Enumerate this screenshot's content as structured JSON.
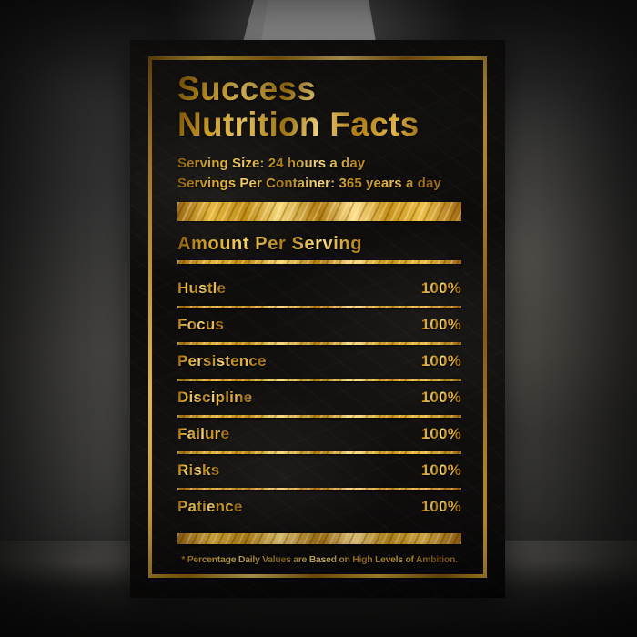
{
  "colors": {
    "gold": "#d9a62b",
    "gold_bright": "#f6d878",
    "gold_dark": "#8a5c0c",
    "poster_background": "#0e0d0b",
    "wall_gray": "#444342",
    "spotlight_white": "#f7f7f4",
    "floor_dark": "#232221"
  },
  "poster": {
    "title_line1": "Success",
    "title_line2": "Nutrition Facts",
    "serving_size": "Serving Size: 24 hours a day",
    "servings_per_container": "Servings Per Container: 365 years a day",
    "section_header": "Amount Per Serving",
    "rows": [
      {
        "label": "Hustle",
        "value": "100%"
      },
      {
        "label": "Focus",
        "value": "100%"
      },
      {
        "label": "Persistence",
        "value": "100%"
      },
      {
        "label": "Discipline",
        "value": "100%"
      },
      {
        "label": "Failure",
        "value": "100%"
      },
      {
        "label": "Risks",
        "value": "100%"
      },
      {
        "label": "Patience",
        "value": "100%"
      }
    ],
    "footnote": "* Percentage Daily Values are Based on High Levels of Ambition."
  }
}
